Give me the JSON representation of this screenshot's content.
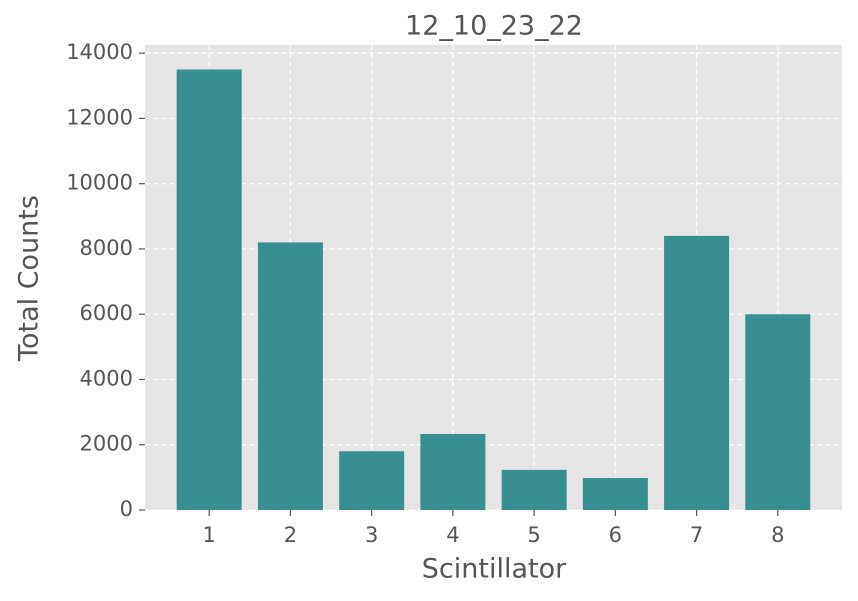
{
  "chart_data": {
    "type": "bar",
    "title": "12_10_23_22",
    "xlabel": "Scintillator",
    "ylabel": "Total Counts",
    "x": [
      1,
      2,
      3,
      4,
      5,
      6,
      7,
      8
    ],
    "values": [
      13500,
      8200,
      1800,
      2330,
      1230,
      980,
      8400,
      6000
    ],
    "color": "#388e90",
    "xlim": [
      0.21,
      8.79
    ],
    "xticks": [
      1,
      2,
      3,
      4,
      5,
      6,
      7,
      8
    ],
    "ylim": [
      0,
      14250
    ],
    "yticks": [
      0,
      2000,
      4000,
      6000,
      8000,
      10000,
      12000,
      14000
    ],
    "grid": true
  }
}
